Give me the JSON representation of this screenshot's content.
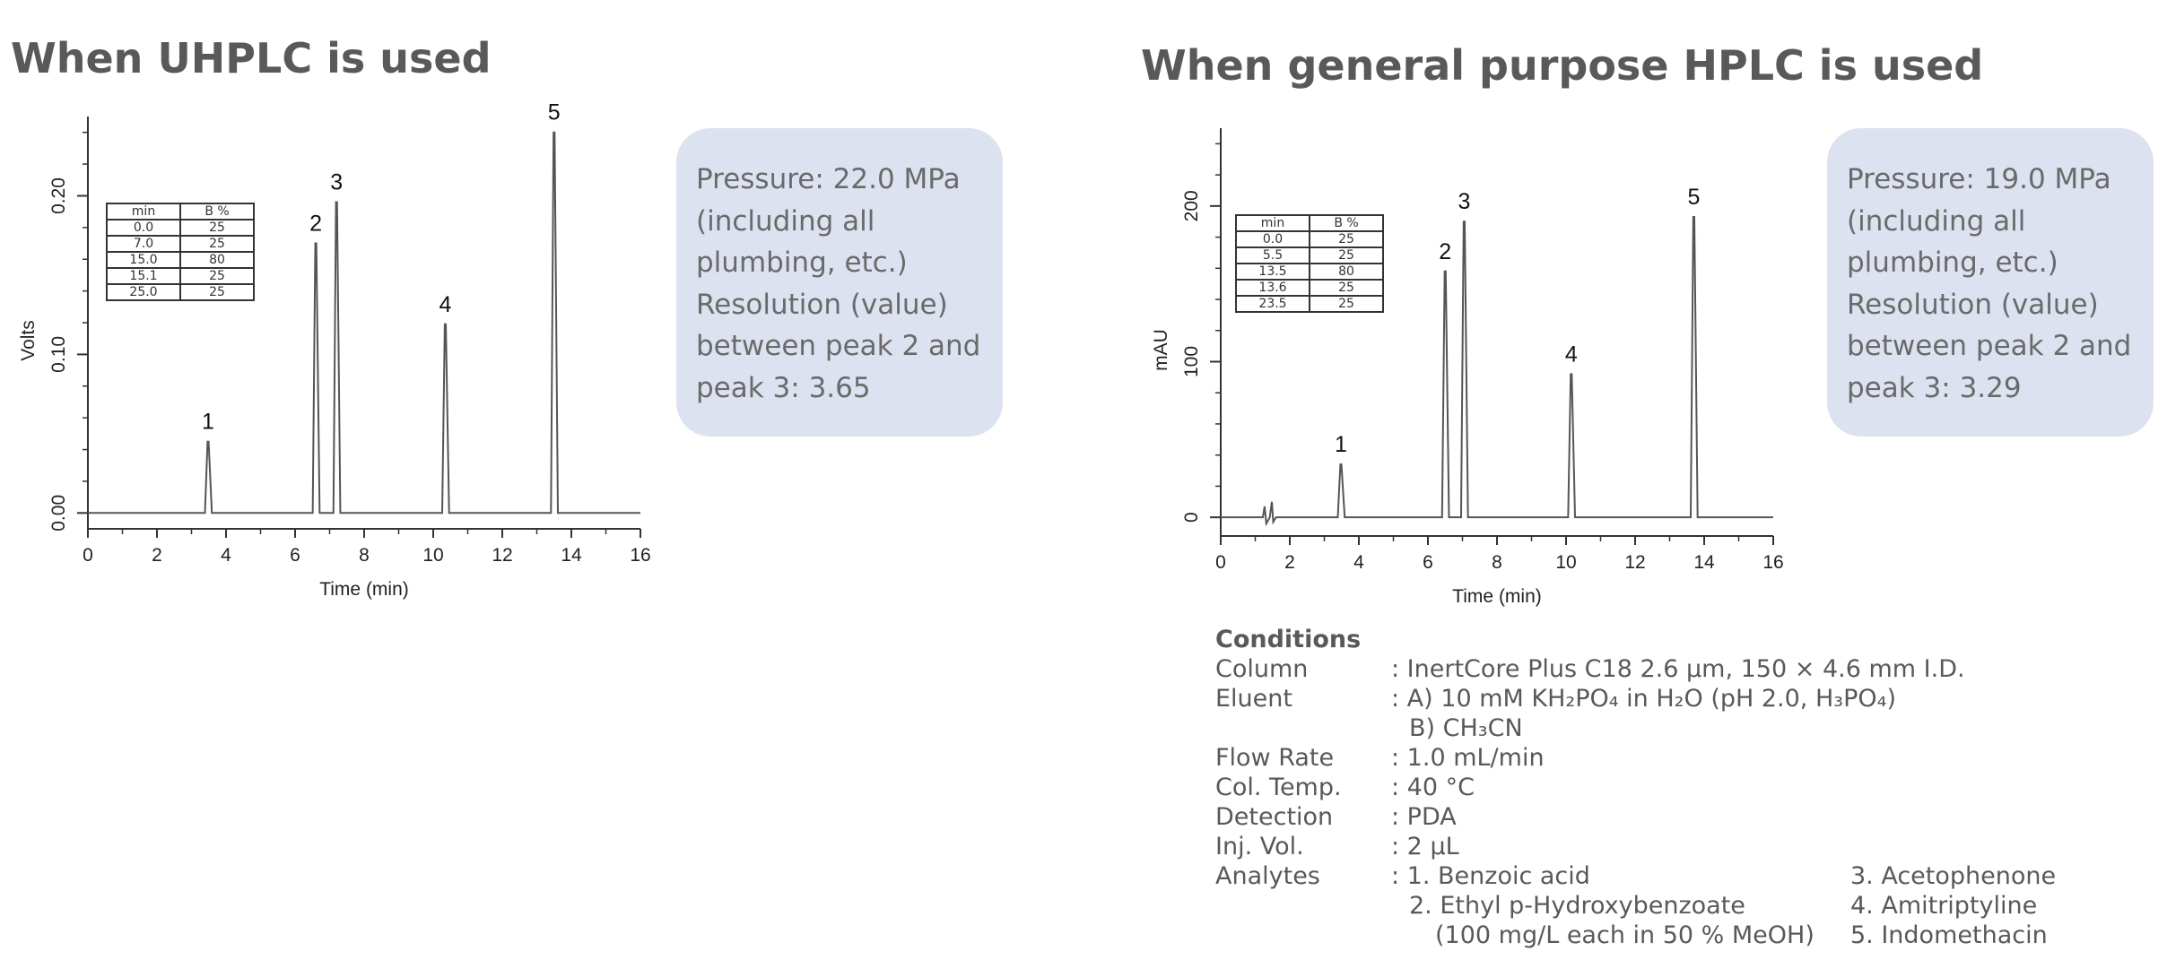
{
  "titles": {
    "left": "When UHPLC is used",
    "right": "When general purpose HPLC is used"
  },
  "info_boxes": {
    "left": [
      "Pressure: 22.0 MPa",
      "(including all",
      "plumbing, etc.)",
      "Resolution (value)",
      "between peak 2 and",
      "peak 3: 3.65"
    ],
    "right": [
      "Pressure: 19.0 MPa",
      "(including all",
      "plumbing, etc.)",
      "Resolution (value)",
      "between peak 2 and",
      "peak 3: 3.29"
    ]
  },
  "gradient_tables": {
    "left": {
      "headers": [
        "min",
        "B %"
      ],
      "rows": [
        [
          "0.0",
          "25"
        ],
        [
          "7.0",
          "25"
        ],
        [
          "15.0",
          "80"
        ],
        [
          "15.1",
          "25"
        ],
        [
          "25.0",
          "25"
        ]
      ]
    },
    "right": {
      "headers": [
        "min",
        "B %"
      ],
      "rows": [
        [
          "0.0",
          "25"
        ],
        [
          "5.5",
          "25"
        ],
        [
          "13.5",
          "80"
        ],
        [
          "13.6",
          "25"
        ],
        [
          "23.5",
          "25"
        ]
      ]
    }
  },
  "chart_data": [
    {
      "type": "line",
      "xlabel": "Time (min)",
      "ylabel": "Volts",
      "xlim": [
        0,
        16
      ],
      "ylim": [
        -0.01,
        0.25
      ],
      "xticks": [
        0,
        2,
        4,
        6,
        8,
        10,
        12,
        14,
        16
      ],
      "yticks": [
        0.0,
        0.1,
        0.2
      ],
      "ytick_labels": [
        "0.00",
        "0.10",
        "0.20"
      ],
      "peaks": [
        {
          "label": "1",
          "time": 3.48,
          "height": 0.045
        },
        {
          "label": "2",
          "time": 6.6,
          "height": 0.17
        },
        {
          "label": "3",
          "time": 7.2,
          "height": 0.196
        },
        {
          "label": "4",
          "time": 10.35,
          "height": 0.119
        },
        {
          "label": "5",
          "time": 13.5,
          "height": 0.24
        }
      ],
      "color": "#555555"
    },
    {
      "type": "line",
      "xlabel": "Time (min)",
      "ylabel": "mAU",
      "xlim": [
        0,
        16
      ],
      "ylim": [
        -12,
        250
      ],
      "xticks": [
        0,
        2,
        4,
        6,
        8,
        10,
        12,
        14,
        16
      ],
      "yticks": [
        0,
        100,
        200
      ],
      "ytick_labels": [
        "0",
        "100",
        "200"
      ],
      "peaks": [
        {
          "label": "1",
          "time": 3.48,
          "height": 34
        },
        {
          "label": "2",
          "time": 6.5,
          "height": 158
        },
        {
          "label": "3",
          "time": 7.05,
          "height": 190
        },
        {
          "label": "4",
          "time": 10.15,
          "height": 92
        },
        {
          "label": "5",
          "time": 13.7,
          "height": 193
        }
      ],
      "color": "#555555"
    }
  ],
  "conditions": {
    "heading": "Conditions",
    "column_label": "Column",
    "column_value": ": InertCore Plus C18 2.6 μm, 150 × 4.6 mm I.D.",
    "eluent_label": "Eluent",
    "eluent_value_a": ": A) 10 mM KH₂PO₄ in H₂O (pH 2.0, H₃PO₄)",
    "eluent_value_b": "B) CH₃CN",
    "flow_label": "Flow Rate",
    "flow_value": ": 1.0 mL/min",
    "temp_label": "Col. Temp.",
    "temp_value": ": 40 °C",
    "detection_label": "Detection",
    "detection_value": ": PDA",
    "inj_label": "Inj. Vol.",
    "inj_value": ": 2 μL",
    "analytes_label": "Analytes",
    "analyte_1": ": 1. Benzoic acid",
    "analyte_2": "2. Ethyl p-Hydroxybenzoate",
    "analyte_note": "(100 mg/L each in 50 % MeOH)",
    "analyte_3": "3. Acetophenone",
    "analyte_4": "4. Amitriptyline",
    "analyte_5": "5. Indomethacin"
  }
}
